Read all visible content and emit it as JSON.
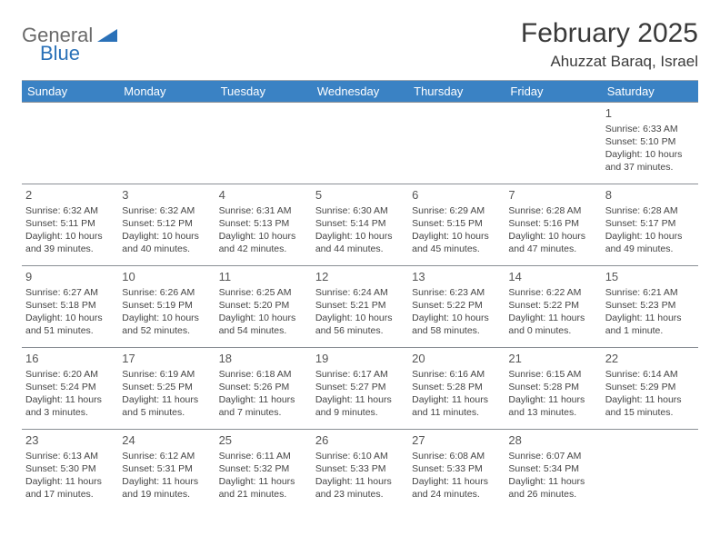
{
  "logo": {
    "text_general": "General",
    "text_blue": "Blue",
    "mark_color": "#2a71b8"
  },
  "header": {
    "month_title": "February 2025",
    "location": "Ahuzzat Baraq, Israel"
  },
  "colors": {
    "header_bg": "#3a82c4",
    "header_text": "#ffffff",
    "grid_line": "#8a8f95",
    "text": "#444444"
  },
  "day_headers": [
    "Sunday",
    "Monday",
    "Tuesday",
    "Wednesday",
    "Thursday",
    "Friday",
    "Saturday"
  ],
  "weeks": [
    [
      null,
      null,
      null,
      null,
      null,
      null,
      {
        "n": "1",
        "sunrise": "Sunrise: 6:33 AM",
        "sunset": "Sunset: 5:10 PM",
        "daylight": "Daylight: 10 hours and 37 minutes."
      }
    ],
    [
      {
        "n": "2",
        "sunrise": "Sunrise: 6:32 AM",
        "sunset": "Sunset: 5:11 PM",
        "daylight": "Daylight: 10 hours and 39 minutes."
      },
      {
        "n": "3",
        "sunrise": "Sunrise: 6:32 AM",
        "sunset": "Sunset: 5:12 PM",
        "daylight": "Daylight: 10 hours and 40 minutes."
      },
      {
        "n": "4",
        "sunrise": "Sunrise: 6:31 AM",
        "sunset": "Sunset: 5:13 PM",
        "daylight": "Daylight: 10 hours and 42 minutes."
      },
      {
        "n": "5",
        "sunrise": "Sunrise: 6:30 AM",
        "sunset": "Sunset: 5:14 PM",
        "daylight": "Daylight: 10 hours and 44 minutes."
      },
      {
        "n": "6",
        "sunrise": "Sunrise: 6:29 AM",
        "sunset": "Sunset: 5:15 PM",
        "daylight": "Daylight: 10 hours and 45 minutes."
      },
      {
        "n": "7",
        "sunrise": "Sunrise: 6:28 AM",
        "sunset": "Sunset: 5:16 PM",
        "daylight": "Daylight: 10 hours and 47 minutes."
      },
      {
        "n": "8",
        "sunrise": "Sunrise: 6:28 AM",
        "sunset": "Sunset: 5:17 PM",
        "daylight": "Daylight: 10 hours and 49 minutes."
      }
    ],
    [
      {
        "n": "9",
        "sunrise": "Sunrise: 6:27 AM",
        "sunset": "Sunset: 5:18 PM",
        "daylight": "Daylight: 10 hours and 51 minutes."
      },
      {
        "n": "10",
        "sunrise": "Sunrise: 6:26 AM",
        "sunset": "Sunset: 5:19 PM",
        "daylight": "Daylight: 10 hours and 52 minutes."
      },
      {
        "n": "11",
        "sunrise": "Sunrise: 6:25 AM",
        "sunset": "Sunset: 5:20 PM",
        "daylight": "Daylight: 10 hours and 54 minutes."
      },
      {
        "n": "12",
        "sunrise": "Sunrise: 6:24 AM",
        "sunset": "Sunset: 5:21 PM",
        "daylight": "Daylight: 10 hours and 56 minutes."
      },
      {
        "n": "13",
        "sunrise": "Sunrise: 6:23 AM",
        "sunset": "Sunset: 5:22 PM",
        "daylight": "Daylight: 10 hours and 58 minutes."
      },
      {
        "n": "14",
        "sunrise": "Sunrise: 6:22 AM",
        "sunset": "Sunset: 5:22 PM",
        "daylight": "Daylight: 11 hours and 0 minutes."
      },
      {
        "n": "15",
        "sunrise": "Sunrise: 6:21 AM",
        "sunset": "Sunset: 5:23 PM",
        "daylight": "Daylight: 11 hours and 1 minute."
      }
    ],
    [
      {
        "n": "16",
        "sunrise": "Sunrise: 6:20 AM",
        "sunset": "Sunset: 5:24 PM",
        "daylight": "Daylight: 11 hours and 3 minutes."
      },
      {
        "n": "17",
        "sunrise": "Sunrise: 6:19 AM",
        "sunset": "Sunset: 5:25 PM",
        "daylight": "Daylight: 11 hours and 5 minutes."
      },
      {
        "n": "18",
        "sunrise": "Sunrise: 6:18 AM",
        "sunset": "Sunset: 5:26 PM",
        "daylight": "Daylight: 11 hours and 7 minutes."
      },
      {
        "n": "19",
        "sunrise": "Sunrise: 6:17 AM",
        "sunset": "Sunset: 5:27 PM",
        "daylight": "Daylight: 11 hours and 9 minutes."
      },
      {
        "n": "20",
        "sunrise": "Sunrise: 6:16 AM",
        "sunset": "Sunset: 5:28 PM",
        "daylight": "Daylight: 11 hours and 11 minutes."
      },
      {
        "n": "21",
        "sunrise": "Sunrise: 6:15 AM",
        "sunset": "Sunset: 5:28 PM",
        "daylight": "Daylight: 11 hours and 13 minutes."
      },
      {
        "n": "22",
        "sunrise": "Sunrise: 6:14 AM",
        "sunset": "Sunset: 5:29 PM",
        "daylight": "Daylight: 11 hours and 15 minutes."
      }
    ],
    [
      {
        "n": "23",
        "sunrise": "Sunrise: 6:13 AM",
        "sunset": "Sunset: 5:30 PM",
        "daylight": "Daylight: 11 hours and 17 minutes."
      },
      {
        "n": "24",
        "sunrise": "Sunrise: 6:12 AM",
        "sunset": "Sunset: 5:31 PM",
        "daylight": "Daylight: 11 hours and 19 minutes."
      },
      {
        "n": "25",
        "sunrise": "Sunrise: 6:11 AM",
        "sunset": "Sunset: 5:32 PM",
        "daylight": "Daylight: 11 hours and 21 minutes."
      },
      {
        "n": "26",
        "sunrise": "Sunrise: 6:10 AM",
        "sunset": "Sunset: 5:33 PM",
        "daylight": "Daylight: 11 hours and 23 minutes."
      },
      {
        "n": "27",
        "sunrise": "Sunrise: 6:08 AM",
        "sunset": "Sunset: 5:33 PM",
        "daylight": "Daylight: 11 hours and 24 minutes."
      },
      {
        "n": "28",
        "sunrise": "Sunrise: 6:07 AM",
        "sunset": "Sunset: 5:34 PM",
        "daylight": "Daylight: 11 hours and 26 minutes."
      },
      null
    ]
  ]
}
